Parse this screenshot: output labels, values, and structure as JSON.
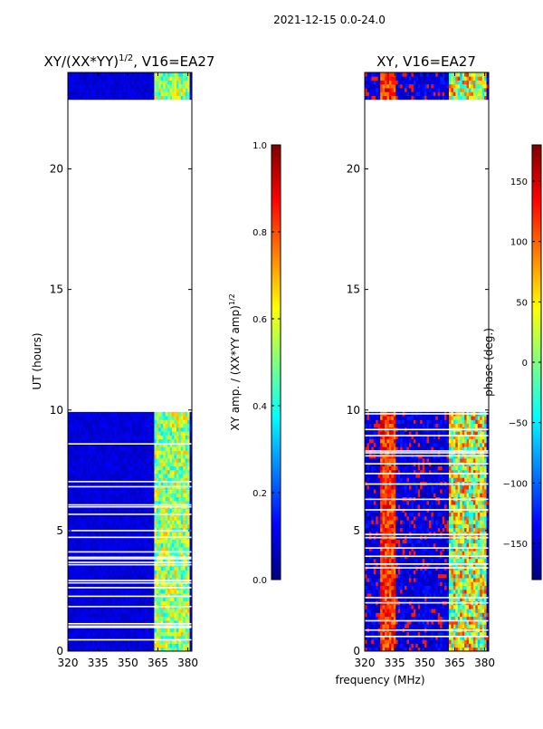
{
  "figure": {
    "suptitle": "2021-12-15 0.0-24.0",
    "shared_xlabel": "frequency (MHz)"
  },
  "colors": {
    "jet": [
      "#00007f",
      "#0000ff",
      "#007fff",
      "#00ffff",
      "#7fff7f",
      "#ffff00",
      "#ff7f00",
      "#ff0000",
      "#7f0000"
    ]
  },
  "chart_data": [
    {
      "type": "heatmap",
      "id": "amp",
      "title_main": "XY/(XX*YY)",
      "title_sup": "1/2",
      "title_tail": ", V16=EA27",
      "xlabel": "",
      "ylabel": "UT (hours)",
      "xlim": [
        320,
        382
      ],
      "ylim": [
        0,
        24
      ],
      "xticks": [
        320,
        335,
        350,
        365,
        380
      ],
      "yticks": [
        0,
        5,
        10,
        15,
        20
      ],
      "data_gaps_hours": [
        [
          10.05,
          22.85
        ]
      ],
      "colorbar": {
        "label": "XY amp. / (XX*YY amp)",
        "label_sup": "1/2",
        "range": [
          0.0,
          1.0
        ],
        "ticks": [
          0.0,
          0.2,
          0.4,
          0.6,
          0.8,
          1.0
        ],
        "tick_labels": [
          "0.0",
          "0.2",
          "0.4",
          "0.6",
          "0.8",
          "1.0"
        ]
      }
    },
    {
      "type": "heatmap",
      "id": "phase",
      "title_main": "XY, V16=EA27",
      "xlabel": "frequency (MHz)",
      "ylabel": "",
      "xlim": [
        320,
        382
      ],
      "ylim": [
        0,
        24
      ],
      "xticks": [
        320,
        335,
        350,
        365,
        380
      ],
      "yticks": [
        0,
        5,
        10,
        15,
        20
      ],
      "data_gaps_hours": [
        [
          10.05,
          22.85
        ]
      ],
      "colorbar": {
        "label": "phase (deg.)",
        "range": [
          -180,
          180
        ],
        "ticks": [
          -150,
          -100,
          -50,
          0,
          50,
          100,
          150
        ],
        "tick_labels": [
          "−150",
          "−100",
          "−50",
          "0",
          "50",
          "100",
          "150"
        ]
      }
    }
  ]
}
